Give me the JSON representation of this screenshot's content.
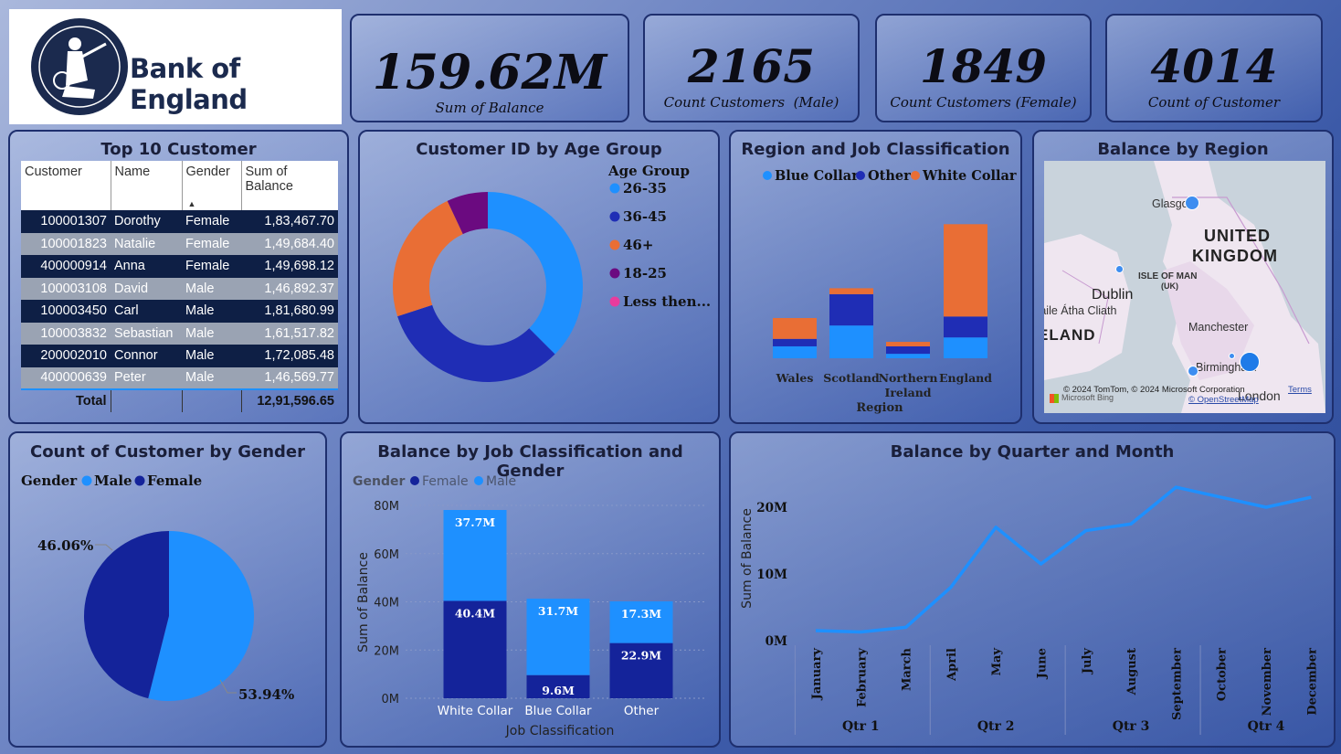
{
  "logo": {
    "text": "Bank of England"
  },
  "kpis": [
    {
      "value": "159.62M",
      "label": "Sum of Balance"
    },
    {
      "value": "2165",
      "label": "Count Customers  (Male)"
    },
    {
      "value": "1849",
      "label": "Count Customers (Female)"
    },
    {
      "value": "4014",
      "label": "Count of Customer"
    }
  ],
  "top10": {
    "title": "Top 10 Customer",
    "headers": [
      "Customer",
      "Name",
      "Gender",
      "Sum of Balance"
    ],
    "rows": [
      [
        "100001307",
        "Dorothy",
        "Female",
        "1,83,467.70"
      ],
      [
        "100001823",
        "Natalie",
        "Female",
        "1,49,684.40"
      ],
      [
        "400000914",
        "Anna",
        "Female",
        "1,49,698.12"
      ],
      [
        "100003108",
        "David",
        "Male",
        "1,46,892.37"
      ],
      [
        "100003450",
        "Carl",
        "Male",
        "1,81,680.99"
      ],
      [
        "100003832",
        "Sebastian",
        "Male",
        "1,61,517.82"
      ],
      [
        "200002010",
        "Connor",
        "Male",
        "1,72,085.48"
      ],
      [
        "400000639",
        "Peter",
        "Male",
        "1,46,569.77"
      ]
    ],
    "total_label": "Total",
    "total_value": "12,91,596.65"
  },
  "age_donut": {
    "title": "Customer ID by Age Group",
    "legend_title": "Age Group",
    "labels": [
      "26-35",
      "36-45",
      "46+",
      "18-25",
      "Less then..."
    ],
    "colors": [
      "#1e90ff",
      "#1f2db5",
      "#e96e35",
      "#6b0a80",
      "#e83c9d"
    ],
    "chart_data": {
      "type": "pie",
      "categories": [
        "26-35",
        "36-45",
        "46+",
        "18-25",
        "Less then..."
      ],
      "values": [
        37.5,
        32.5,
        23,
        7,
        0
      ]
    }
  },
  "region_job": {
    "title": "Region and Job Classification",
    "legend": [
      "Blue Collar",
      "Other",
      "White Collar"
    ],
    "colors": [
      "#1e90ff",
      "#1f2db5",
      "#e96e35"
    ],
    "xlabel": "Region",
    "chart_data": {
      "type": "bar",
      "categories": [
        "Wales",
        "Scotland",
        "Northern Ireland",
        "England"
      ],
      "series": [
        {
          "name": "Blue Collar",
          "values": [
            4,
            11,
            1.5,
            7
          ]
        },
        {
          "name": "Other",
          "values": [
            2.5,
            10.5,
            2.5,
            7
          ]
        },
        {
          "name": "White Collar",
          "values": [
            7,
            2,
            1.5,
            31
          ]
        }
      ]
    }
  },
  "map": {
    "title": "Balance by Region",
    "labels": [
      "Glasgow",
      "UNITED",
      "KINGDOM",
      "ISLE OF MAN",
      "(UK)",
      "Dublin",
      "Baile Átha Cliath",
      "IRELAND",
      "Manchester",
      "Birmingham",
      "London"
    ],
    "attribution": "© 2024 TomTom, © 2024 Microsoft Corporation",
    "terms": "Terms",
    "osm": "© OpenStreetMap",
    "bing": "Microsoft Bing"
  },
  "gender_pie": {
    "title": "Count of Customer by Gender",
    "legend_title": "Gender",
    "legend": [
      "Male",
      "Female"
    ],
    "colors": [
      "#1e90ff",
      "#14239a"
    ],
    "label_male": "53.94%",
    "label_female": "46.06%",
    "chart_data": {
      "type": "pie",
      "categories": [
        "Male",
        "Female"
      ],
      "values": [
        53.94,
        46.06
      ]
    }
  },
  "job_gender": {
    "title": "Balance by Job Classification and Gender",
    "legend_title": "Gender",
    "legend": [
      "Female",
      "Male"
    ],
    "colors": [
      "#14239a",
      "#1e90ff"
    ],
    "ylabel": "Sum of Balance",
    "xlabel": "Job Classification",
    "yticks": [
      "0M",
      "20M",
      "40M",
      "60M",
      "80M"
    ],
    "chart_data": {
      "type": "bar",
      "categories": [
        "White Collar",
        "Blue Collar",
        "Other"
      ],
      "series": [
        {
          "name": "Female",
          "values": [
            40.4,
            9.6,
            22.9
          ],
          "labels": [
            "40.4M",
            "9.6M",
            "22.9M"
          ]
        },
        {
          "name": "Male",
          "values": [
            37.7,
            31.7,
            17.3
          ],
          "labels": [
            "37.7M",
            "31.7M",
            "17.3M"
          ]
        }
      ],
      "ylim": [
        0,
        80
      ]
    }
  },
  "quarter_month": {
    "title": "Balance by Quarter and Month",
    "ylabel": "Sum of Balance",
    "yticks": [
      "0M",
      "10M",
      "20M"
    ],
    "quarters": [
      "Qtr 1",
      "Qtr 2",
      "Qtr 3",
      "Qtr 4"
    ],
    "color": "#1e90ff",
    "chart_data": {
      "type": "line",
      "x": [
        "January",
        "February",
        "March",
        "April",
        "May",
        "June",
        "July",
        "August",
        "September",
        "October",
        "November",
        "December"
      ],
      "values": [
        1.5,
        1.3,
        2,
        8,
        17,
        11.5,
        16.5,
        17.5,
        23,
        21.5,
        20,
        21.5
      ],
      "ylim": [
        0,
        25
      ]
    }
  }
}
